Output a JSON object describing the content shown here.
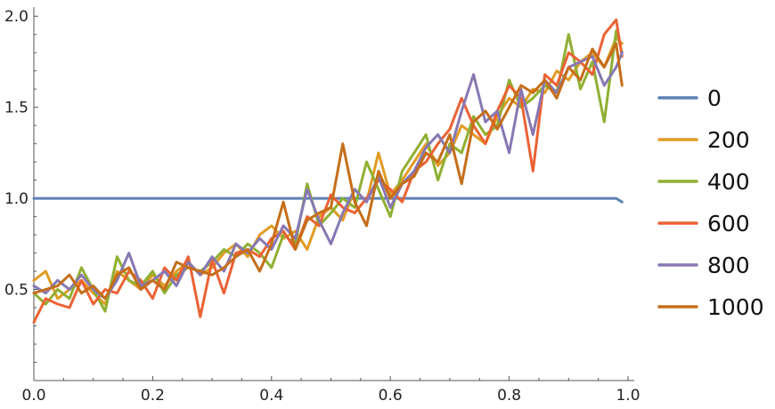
{
  "chart_data": {
    "type": "line",
    "title": "",
    "xlabel": "",
    "ylabel": "",
    "xlim": [
      0,
      1.0
    ],
    "ylim": [
      0,
      2.05
    ],
    "x_ticks": [
      {
        "value": 0.0,
        "label": "0.0"
      },
      {
        "value": 0.2,
        "label": "0.2"
      },
      {
        "value": 0.4,
        "label": "0.4"
      },
      {
        "value": 0.6,
        "label": "0.6"
      },
      {
        "value": 0.8,
        "label": "0.8"
      },
      {
        "value": 1.0,
        "label": "1.0"
      }
    ],
    "y_ticks": [
      {
        "value": 0.5,
        "label": "0.5"
      },
      {
        "value": 1.0,
        "label": "1.0"
      },
      {
        "value": 1.5,
        "label": "1.5"
      },
      {
        "value": 2.0,
        "label": "2.0"
      }
    ],
    "grid": false,
    "legend_position": "right",
    "x": [
      0.0,
      0.02,
      0.04,
      0.06,
      0.08,
      0.1,
      0.12,
      0.14,
      0.16,
      0.18,
      0.2,
      0.22,
      0.24,
      0.26,
      0.28,
      0.3,
      0.32,
      0.34,
      0.36,
      0.38,
      0.4,
      0.42,
      0.44,
      0.46,
      0.48,
      0.5,
      0.52,
      0.54,
      0.56,
      0.58,
      0.6,
      0.62,
      0.64,
      0.66,
      0.68,
      0.7,
      0.72,
      0.74,
      0.76,
      0.78,
      0.8,
      0.82,
      0.84,
      0.86,
      0.88,
      0.9,
      0.92,
      0.94,
      0.96,
      0.98,
      0.99
    ],
    "series": [
      {
        "name": "0",
        "color": "#5e81b5",
        "values": [
          1.0,
          1.0,
          1.0,
          1.0,
          1.0,
          1.0,
          1.0,
          1.0,
          1.0,
          1.0,
          1.0,
          1.0,
          1.0,
          1.0,
          1.0,
          1.0,
          1.0,
          1.0,
          1.0,
          1.0,
          1.0,
          1.0,
          1.0,
          1.0,
          1.0,
          1.0,
          1.0,
          1.0,
          1.0,
          1.0,
          1.0,
          1.0,
          1.0,
          1.0,
          1.0,
          1.0,
          1.0,
          1.0,
          1.0,
          1.0,
          1.0,
          1.0,
          1.0,
          1.0,
          1.0,
          1.0,
          1.0,
          1.0,
          1.0,
          1.0,
          0.98
        ]
      },
      {
        "name": "200",
        "color": "#e19c24",
        "values": [
          0.55,
          0.6,
          0.45,
          0.5,
          0.55,
          0.48,
          0.42,
          0.6,
          0.55,
          0.5,
          0.58,
          0.52,
          0.6,
          0.65,
          0.58,
          0.62,
          0.7,
          0.75,
          0.68,
          0.8,
          0.85,
          0.78,
          0.82,
          0.72,
          0.9,
          0.95,
          0.88,
          1.05,
          0.98,
          1.25,
          1.02,
          1.1,
          1.2,
          1.3,
          1.18,
          1.25,
          1.4,
          1.35,
          1.3,
          1.45,
          1.55,
          1.5,
          1.6,
          1.58,
          1.7,
          1.65,
          1.75,
          1.8,
          1.72,
          1.88,
          1.85
        ]
      },
      {
        "name": "400",
        "color": "#8fb032",
        "values": [
          0.48,
          0.42,
          0.5,
          0.45,
          0.62,
          0.5,
          0.38,
          0.68,
          0.55,
          0.52,
          0.6,
          0.48,
          0.58,
          0.62,
          0.6,
          0.65,
          0.72,
          0.68,
          0.75,
          0.7,
          0.62,
          0.8,
          0.75,
          1.08,
          0.85,
          0.92,
          1.0,
          0.95,
          1.2,
          1.05,
          0.9,
          1.15,
          1.25,
          1.35,
          1.1,
          1.3,
          1.25,
          1.45,
          1.35,
          1.4,
          1.65,
          1.5,
          1.55,
          1.62,
          1.58,
          1.9,
          1.6,
          1.75,
          1.42,
          1.92,
          1.8
        ]
      },
      {
        "name": "600",
        "color": "#eb6235",
        "values": [
          0.32,
          0.45,
          0.42,
          0.4,
          0.55,
          0.42,
          0.5,
          0.48,
          0.6,
          0.55,
          0.45,
          0.62,
          0.55,
          0.68,
          0.35,
          0.66,
          0.48,
          0.7,
          0.72,
          0.68,
          0.78,
          0.82,
          0.72,
          0.9,
          0.85,
          1.02,
          0.95,
          0.92,
          1.0,
          1.1,
          1.05,
          0.98,
          1.15,
          1.2,
          1.3,
          1.38,
          1.55,
          1.4,
          1.3,
          1.48,
          1.62,
          1.55,
          1.15,
          1.68,
          1.62,
          1.8,
          1.75,
          1.68,
          1.9,
          1.98,
          1.78
        ]
      },
      {
        "name": "800",
        "color": "#8778b3",
        "values": [
          0.52,
          0.48,
          0.55,
          0.5,
          0.58,
          0.5,
          0.45,
          0.55,
          0.7,
          0.52,
          0.55,
          0.6,
          0.52,
          0.65,
          0.58,
          0.68,
          0.6,
          0.75,
          0.7,
          0.78,
          0.72,
          0.85,
          0.78,
          1.05,
          0.88,
          0.75,
          0.92,
          1.05,
          0.98,
          1.12,
          0.95,
          1.08,
          1.15,
          1.28,
          1.35,
          1.25,
          1.48,
          1.68,
          1.42,
          1.48,
          1.25,
          1.6,
          1.35,
          1.65,
          1.58,
          1.72,
          1.75,
          1.78,
          1.62,
          1.72,
          1.8
        ]
      },
      {
        "name": "1000",
        "color": "#c56e1a",
        "values": [
          0.48,
          0.5,
          0.52,
          0.58,
          0.48,
          0.52,
          0.45,
          0.58,
          0.62,
          0.5,
          0.55,
          0.5,
          0.65,
          0.62,
          0.6,
          0.58,
          0.62,
          0.68,
          0.72,
          0.6,
          0.75,
          0.98,
          0.72,
          0.88,
          0.92,
          0.95,
          1.3,
          0.98,
          0.85,
          1.15,
          1.0,
          1.08,
          1.12,
          1.25,
          1.2,
          1.35,
          1.08,
          1.42,
          1.48,
          1.38,
          1.5,
          1.62,
          1.58,
          1.65,
          1.55,
          1.72,
          1.65,
          1.82,
          1.72,
          1.85,
          1.62
        ]
      }
    ]
  }
}
